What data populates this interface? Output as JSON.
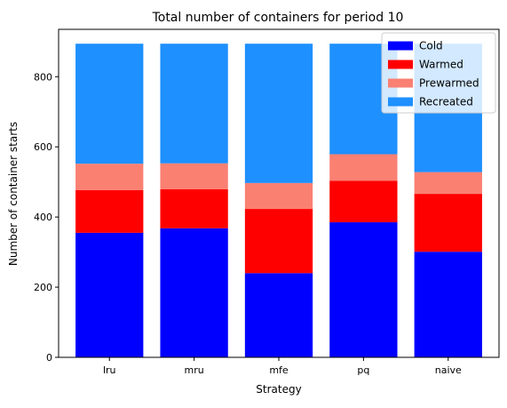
{
  "chart_data": {
    "type": "bar",
    "stacked": true,
    "title": "Total number of containers for period 10",
    "xlabel": "Strategy",
    "ylabel": "Number of container starts",
    "categories": [
      "lru",
      "mru",
      "mfe",
      "pq",
      "naive"
    ],
    "ylim": [
      0,
      935
    ],
    "yticks": [
      0,
      200,
      400,
      600,
      800
    ],
    "grid": false,
    "legend_position": "top-right",
    "series": [
      {
        "name": "Cold",
        "color": "#0000ff",
        "values": [
          355,
          368,
          240,
          385,
          301
        ]
      },
      {
        "name": "Warmed",
        "color": "#ff0000",
        "values": [
          122,
          111,
          183,
          118,
          165
        ]
      },
      {
        "name": "Prewarmed",
        "color": "#fa8072",
        "values": [
          75,
          74,
          74,
          76,
          62
        ]
      },
      {
        "name": "Recreated",
        "color": "#1e90ff",
        "values": [
          342,
          341,
          397,
          315,
          366
        ]
      }
    ]
  }
}
